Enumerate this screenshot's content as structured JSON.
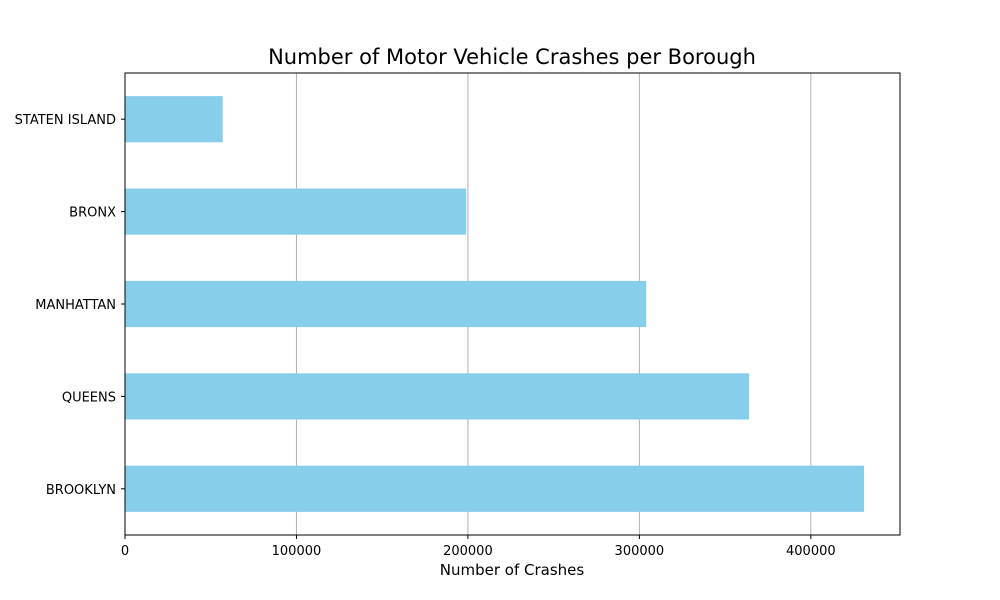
{
  "chart_data": {
    "type": "bar",
    "orientation": "horizontal",
    "title": "Number of Motor Vehicle Crashes per Borough",
    "xlabel": "Number of Crashes",
    "ylabel": "",
    "categories": [
      "BROOKLYN",
      "QUEENS",
      "MANHATTAN",
      "BRONX",
      "STATEN ISLAND"
    ],
    "values": [
      431000,
      364000,
      304000,
      199000,
      57000
    ],
    "xlim": [
      0,
      452000
    ],
    "xticks": [
      0,
      100000,
      200000,
      300000,
      400000
    ],
    "xtick_labels": [
      "0",
      "100000",
      "200000",
      "300000",
      "400000"
    ],
    "grid": "x",
    "legend": "none",
    "colors": {
      "bar": "#87ceeb",
      "grid": "#b0b0b0",
      "axis": "#000000"
    }
  }
}
